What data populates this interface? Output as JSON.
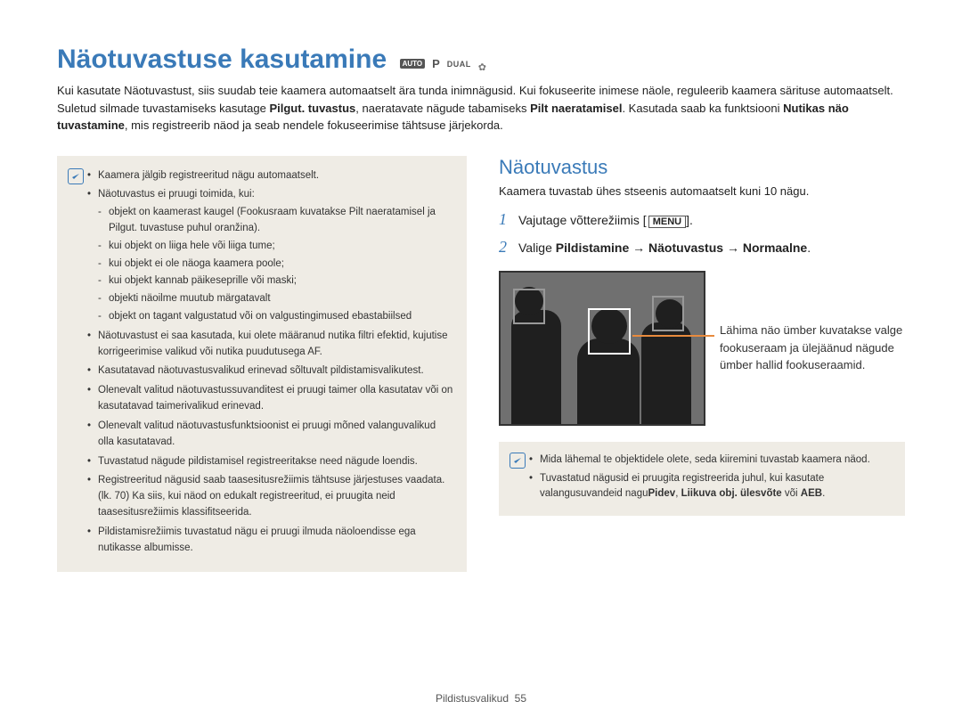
{
  "title": "Näotuvastuse kasutamine",
  "modeIcons": {
    "auto": "AUTO",
    "p": "P",
    "dual": "DUAL"
  },
  "intro_parts": [
    "Kui kasutate Näotuvastust, siis suudab teie kaamera automaatselt ära tunda inimnägusid. Kui fokuseerite inimese näole, reguleerib kaamera särituse automaatselt. Suletud silmade tuvastamiseks kasutage ",
    "Pilgut. tuvastus",
    ", naeratavate nägude tabamiseks ",
    "Pilt naeratamisel",
    ". Kasutada saab ka funktsiooni ",
    "Nutikas näo tuvastamine",
    ", mis registreerib näod ja seab nendele fokuseerimise tähtsuse järjekorda."
  ],
  "leftNote": {
    "items": [
      {
        "text": "Kaamera jälgib registreeritud nägu automaatselt."
      },
      {
        "text": "Näotuvastus ei pruugi toimida, kui:",
        "sub": [
          "objekt on kaamerast kaugel (Fookusraam kuvatakse Pilt naeratamisel ja Pilgut. tuvastuse puhul oranžina).",
          "kui objekt on liiga hele või liiga tume;",
          "kui objekt ei ole näoga kaamera poole;",
          "kui objekt kannab päikeseprille või maski;",
          "objekti näoilme muutub märgatavalt",
          "objekt on tagant valgustatud või on valgustingimused ebastabiilsed"
        ]
      },
      {
        "text": "Näotuvastust ei saa kasutada, kui olete määranud nutika filtri efektid, kujutise korrigeerimise valikud või nutika puudutusega AF."
      },
      {
        "text": "Kasutatavad näotuvastusvalikud erinevad sõltuvalt pildistamisvalikutest."
      },
      {
        "text": "Olenevalt valitud näotuvastussuvanditest ei pruugi taimer olla kasutatav või on kasutatavad taimerivalikud erinevad."
      },
      {
        "text": "Olenevalt valitud näotuvastusfunktsioonist ei pruugi mõned valanguvalikud olla kasutatavad."
      },
      {
        "text": "Tuvastatud nägude pildistamisel registreeritakse need nägude loendis."
      },
      {
        "text": "Registreeritud nägusid saab taasesitusrežiimis tähtsuse järjestuses vaadata. (lk. 70) Ka siis, kui näod on edukalt registreeritud, ei pruugita neid taasesitusrežiimis klassifitseerida."
      },
      {
        "text": "Pildistamisrežiimis tuvastatud nägu ei pruugi ilmuda näoloendisse ega nutikasse albumisse."
      }
    ]
  },
  "right": {
    "heading": "Näotuvastus",
    "sub": "Kaamera tuvastab ühes stseenis automaatselt kuni 10 nägu.",
    "step1_pre": "Vajutage võtterežiimis [",
    "step1_btn": "MENU",
    "step1_post": "].",
    "step2_pre": "Valige ",
    "step2_bold": "Pildistamine → Näotuvastus → Normaalne",
    "step2_post": ".",
    "caption": "Lähima näo ümber kuvatakse valge fookuseraam ja ülejäänud nägude ümber hallid fookuseraamid."
  },
  "rightNote": {
    "items": [
      "Mida lähemal te objektidele olete, seda kiiremini tuvastab kaamera näod.",
      "Tuvastatud nägusid ei pruugita registreerida juhul, kui kasutate valangusuvandeid nagu"
    ],
    "bold": "Pidev",
    "tail1": ", ",
    "bold2": "Liikuva obj. ülesvõte",
    "tail2": " või ",
    "bold3": "AEB",
    "tail3": "."
  },
  "footer": {
    "label": "Pildistusvalikud",
    "page": "55"
  }
}
